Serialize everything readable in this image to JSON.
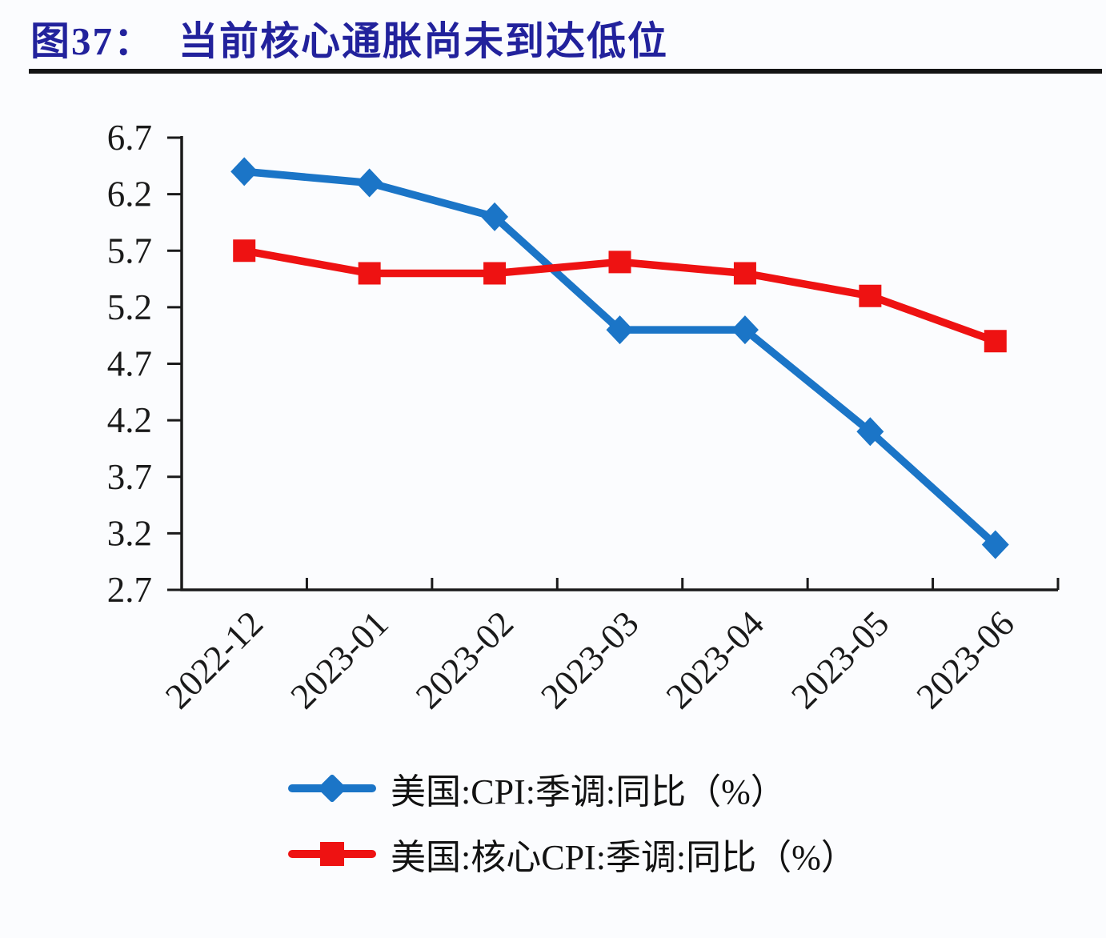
{
  "header": {
    "figure_label": "图37：",
    "title": "当前核心通胀尚未到达低位"
  },
  "colors": {
    "title": "#22229c",
    "axis": "#1a1a1a",
    "divider": "#141414",
    "cpi_blue": "#1b75c7",
    "core_cpi_red": "#ee1212"
  },
  "chart_data": {
    "type": "line",
    "title": "图37：当前核心通胀尚未到达低位",
    "categories": [
      "2022-12",
      "2023-01",
      "2023-02",
      "2023-03",
      "2023-04",
      "2023-05",
      "2023-06"
    ],
    "series": [
      {
        "name": "美国:CPI:季调:同比（%）",
        "marker": "diamond",
        "color": "#1b75c7",
        "values": [
          6.4,
          6.3,
          6.0,
          5.0,
          5.0,
          4.1,
          3.1
        ]
      },
      {
        "name": "美国:核心CPI:季调:同比（%）",
        "marker": "square",
        "color": "#ee1212",
        "values": [
          5.7,
          5.5,
          5.5,
          5.6,
          5.5,
          5.3,
          4.9
        ]
      }
    ],
    "xlabel": "",
    "ylabel": "",
    "ylim": [
      2.7,
      6.7
    ],
    "ytick_labels": [
      "2.7",
      "3.2",
      "3.7",
      "4.2",
      "4.7",
      "5.2",
      "5.7",
      "6.2",
      "6.7"
    ],
    "grid": false,
    "legend_position": "bottom-left"
  }
}
